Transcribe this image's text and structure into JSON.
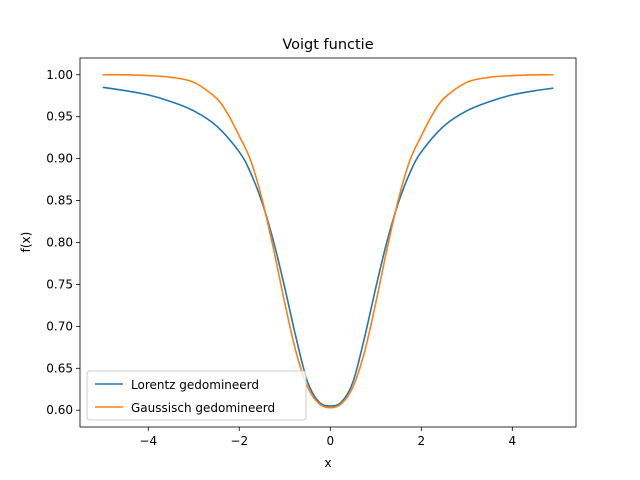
{
  "chart_data": {
    "type": "line",
    "title": "Voigt functie",
    "xlabel": "x",
    "ylabel": "f(x)",
    "xlim": [
      -5.5,
      5.4
    ],
    "ylim": [
      0.58,
      1.02
    ],
    "xticks": [
      -4,
      -2,
      0,
      2,
      4
    ],
    "xtick_labels": [
      "−4",
      "−2",
      "0",
      "2",
      "4"
    ],
    "yticks": [
      0.6,
      0.65,
      0.7,
      0.75,
      0.8,
      0.85,
      0.9,
      0.95,
      1.0
    ],
    "ytick_labels": [
      "0.60",
      "0.65",
      "0.70",
      "0.75",
      "0.80",
      "0.85",
      "0.90",
      "0.95",
      "1.00"
    ],
    "grid": false,
    "legend_position": "lower-left",
    "series": [
      {
        "name": "Lorentz gedomineerd",
        "color": "#1f77b4",
        "x": [
          -5.0,
          -4.5,
          -4.0,
          -3.5,
          -3.0,
          -2.5,
          -2.0,
          -1.75,
          -1.5,
          -1.25,
          -1.0,
          -0.75,
          -0.5,
          -0.25,
          0.0,
          0.25,
          0.5,
          0.75,
          1.0,
          1.25,
          1.5,
          1.75,
          2.0,
          2.5,
          3.0,
          3.5,
          4.0,
          4.5,
          4.9
        ],
        "y": [
          0.985,
          0.981,
          0.976,
          0.968,
          0.957,
          0.939,
          0.908,
          0.883,
          0.848,
          0.802,
          0.746,
          0.686,
          0.634,
          0.61,
          0.605,
          0.61,
          0.634,
          0.686,
          0.746,
          0.802,
          0.848,
          0.883,
          0.908,
          0.939,
          0.957,
          0.968,
          0.976,
          0.981,
          0.984
        ]
      },
      {
        "name": "Gaussisch gedomineerd",
        "color": "#ff7f0e",
        "x": [
          -5.0,
          -4.5,
          -4.0,
          -3.5,
          -3.0,
          -2.5,
          -2.25,
          -2.0,
          -1.75,
          -1.5,
          -1.25,
          -1.0,
          -0.75,
          -0.5,
          -0.25,
          0.0,
          0.25,
          0.5,
          0.75,
          1.0,
          1.25,
          1.5,
          1.75,
          2.0,
          2.25,
          2.5,
          3.0,
          3.5,
          4.0,
          4.5,
          4.9
        ],
        "y": [
          1.0,
          1.0,
          0.999,
          0.997,
          0.991,
          0.972,
          0.953,
          0.927,
          0.898,
          0.852,
          0.793,
          0.728,
          0.669,
          0.628,
          0.608,
          0.603,
          0.608,
          0.628,
          0.669,
          0.728,
          0.793,
          0.852,
          0.898,
          0.927,
          0.953,
          0.972,
          0.991,
          0.997,
          0.999,
          1.0,
          1.0
        ]
      }
    ]
  }
}
